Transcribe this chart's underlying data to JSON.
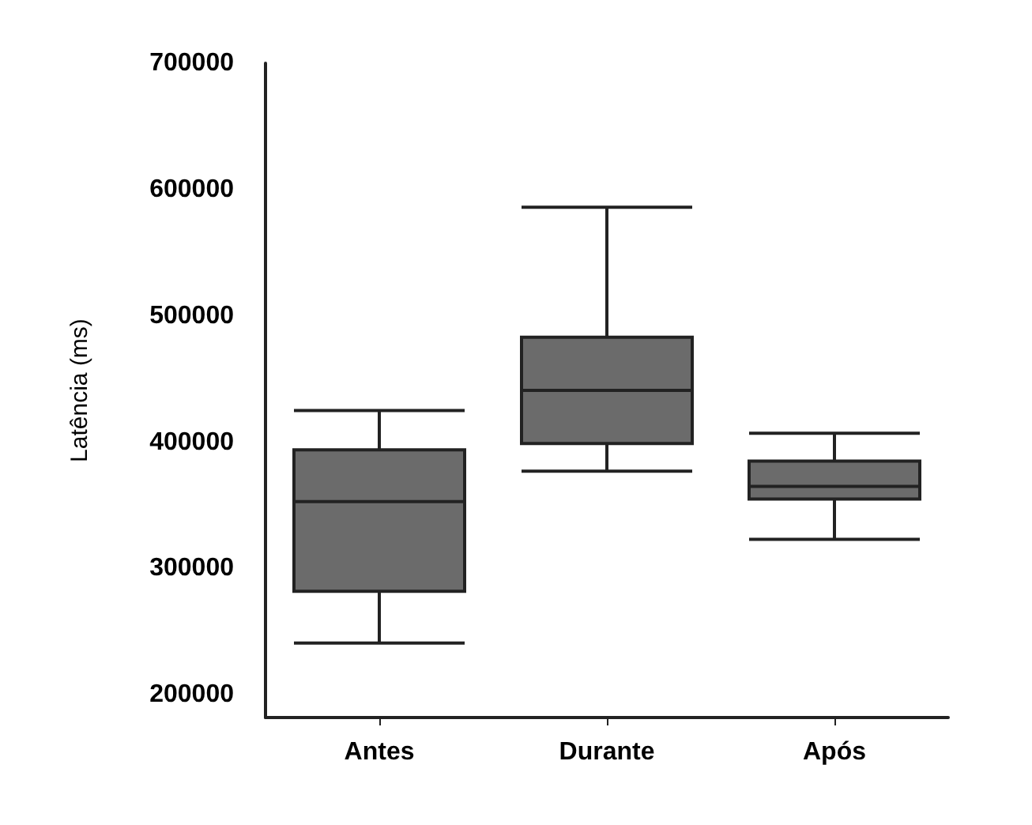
{
  "chart_data": {
    "type": "box",
    "ylabel": "Latência (ms)",
    "categories": [
      "Antes",
      "Durante",
      "Após"
    ],
    "boxes": [
      {
        "low": 241000,
        "q1": 282000,
        "median": 353000,
        "q3": 394000,
        "high": 425000
      },
      {
        "low": 377000,
        "q1": 399000,
        "median": 441000,
        "q3": 483000,
        "high": 586000
      },
      {
        "low": 323000,
        "q1": 355000,
        "median": 365000,
        "q3": 385000,
        "high": 407000
      }
    ],
    "color": "#6b6b6b",
    "ylim": [
      182000,
      700000
    ],
    "yticks": [
      200000,
      300000,
      400000,
      500000,
      600000,
      700000
    ],
    "grid": false
  }
}
